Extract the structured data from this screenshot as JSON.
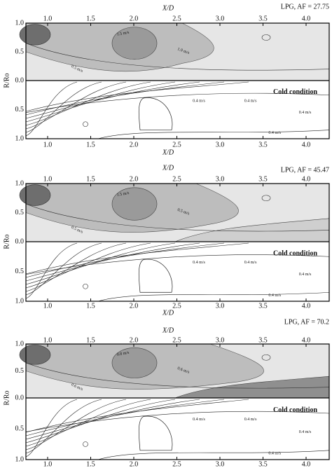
{
  "panels": [
    {
      "title": "LPG, AF = 27.75",
      "x_label_top": "X/D",
      "x_label_bottom": "X/D",
      "y_label": "R/Ro",
      "x_ticks_top": [
        "1.0",
        "1.5",
        "2.0",
        "2.5",
        "3.0",
        "3.5",
        "4.0"
      ],
      "x_ticks_bottom": [
        "1.0",
        "1.5",
        "2.0",
        "2.5",
        "3.0",
        "3.5",
        "4.0"
      ],
      "y_ticks": [
        "1.0",
        "0.5",
        "0.0",
        "0.5",
        "1.0"
      ],
      "cold_label": "Cold condition",
      "contour_labels": [
        "1.5 m/s",
        "1.0 m/s",
        "0.5 m/s",
        "0.4 m/s",
        "0.4 m/s",
        "0.4 m/s",
        "0.4 m/s"
      ]
    },
    {
      "title": "LPG, AF = 45.47",
      "x_label_top": "X/D",
      "x_label_bottom": "X/D",
      "y_label": "R/Ro",
      "x_ticks_top": [
        "1.0",
        "1.5",
        "2.0",
        "2.5",
        "3.0",
        "3.5",
        "4.0"
      ],
      "x_ticks_bottom": [
        "1.0",
        "1.5",
        "2.0",
        "2.5",
        "3.0",
        "3.5",
        "4.0"
      ],
      "y_ticks": [
        "1.0",
        "0.5",
        "0.0",
        "0.5",
        "1.0"
      ],
      "cold_label": "Cold condition",
      "contour_labels": [
        "1.5 m/s",
        "0.5 m/s",
        "0.5 m/s",
        "0.4 m/s",
        "0.4 m/s",
        "0.4 m/s",
        "0.4 m/s"
      ]
    },
    {
      "title": "LPG, AF = 70.2",
      "x_label_top": "X/D",
      "y_label": "R/Ro",
      "x_ticks_top": [
        "1.0",
        "1.5",
        "2.0",
        "2.5",
        "3.0",
        "3.5",
        "4.0"
      ],
      "x_ticks_bottom": [
        "1.0",
        "1.5",
        "2.0",
        "2.5",
        "3.0",
        "3.5",
        "4.0"
      ],
      "y_ticks": [
        "1.0",
        "0.5",
        "0.0",
        "0.5",
        "1.0"
      ],
      "cold_label": "Cold condition",
      "contour_labels": [
        "0.8 m/s",
        "0.6 m/s",
        "0.6 m/s",
        "0.4 m/s",
        "0.4 m/s",
        "0.4 m/s",
        "0.4 m/s"
      ]
    }
  ]
}
